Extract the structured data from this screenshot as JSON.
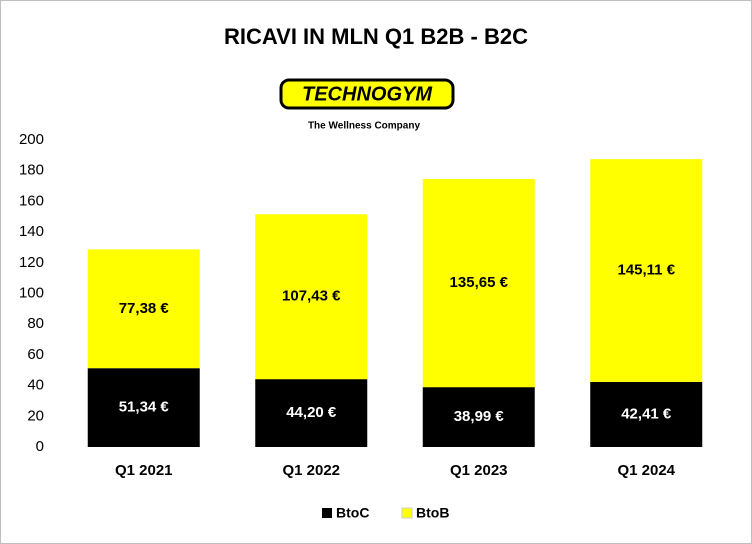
{
  "chart_data": {
    "type": "bar",
    "stacked": true,
    "title": "RICAVI IN MLN Q1 B2B - B2C",
    "logo": "TECHNOGYM",
    "tagline": "The Wellness Company",
    "categories": [
      "Q1 2021",
      "Q1 2022",
      "Q1 2023",
      "Q1 2024"
    ],
    "series": [
      {
        "name": "BtoC",
        "color": "#000000",
        "values": [
          51.34,
          44.2,
          38.99,
          42.41
        ],
        "value_labels": [
          "51,34 €",
          "44,20 €",
          "38,99 €",
          "42,41 €"
        ]
      },
      {
        "name": "BtoB",
        "color": "#ffff00",
        "values": [
          77.38,
          107.43,
          135.65,
          145.11
        ],
        "value_labels": [
          "77,38 €",
          "107,43 €",
          "135,65 €",
          "145,11 €"
        ]
      }
    ],
    "ylim": [
      0,
      200
    ],
    "yticks": [
      0,
      20,
      40,
      60,
      80,
      100,
      120,
      140,
      160,
      180,
      200
    ],
    "grid": false,
    "legend": "bottom"
  }
}
